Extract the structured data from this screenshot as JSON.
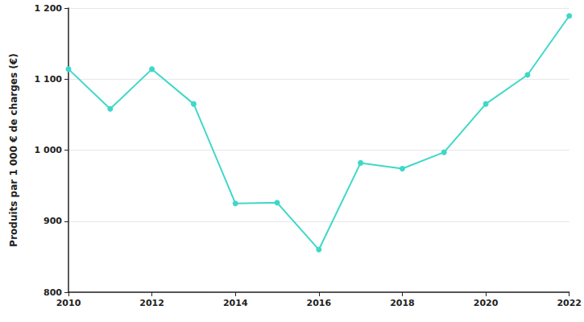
{
  "chart_data": {
    "type": "line",
    "y_label": "Produits par 1 000 € de charges (€)",
    "x": [
      2010,
      2011,
      2012,
      2013,
      2014,
      2015,
      2016,
      2017,
      2018,
      2019,
      2020,
      2021,
      2022
    ],
    "values": [
      1114,
      1058,
      1114,
      1065,
      925,
      926,
      860,
      982,
      974,
      997,
      1065,
      1106,
      1189
    ],
    "color": "#3fd8c8",
    "marker": "circle",
    "xlim": [
      2010,
      2022
    ],
    "xticks": [
      2010,
      2012,
      2014,
      2016,
      2018,
      2020,
      2022
    ],
    "ylim": [
      800,
      1200
    ],
    "yticks": [
      800,
      900,
      {
        "value": 1000,
        "label": "1 000"
      },
      {
        "value": 1100,
        "label": "1 100"
      },
      {
        "value": 1200,
        "label": "1 200"
      }
    ],
    "grid": true
  }
}
